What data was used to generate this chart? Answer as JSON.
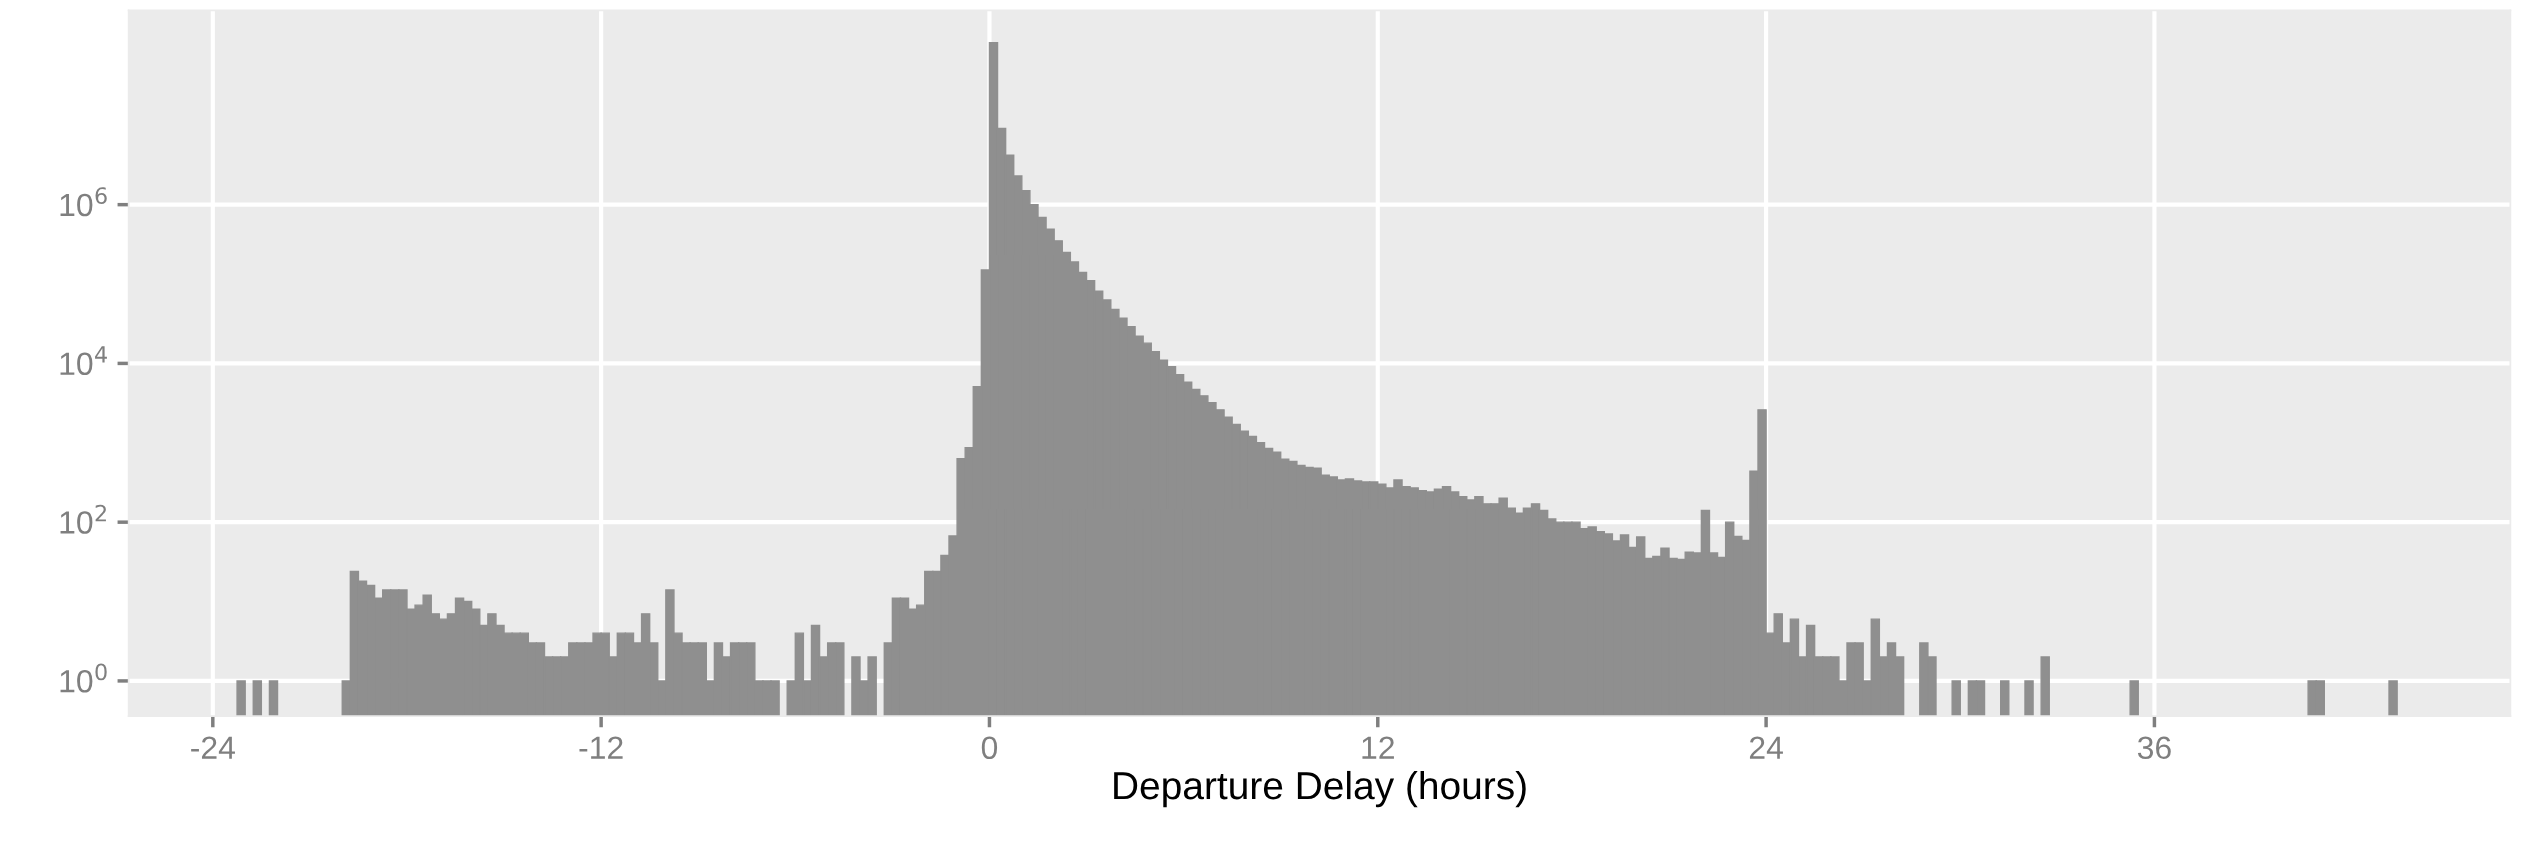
{
  "chart_data": {
    "type": "histogram",
    "xlabel": "Departure Delay (hours)",
    "color": "#8f8f8f",
    "bins": [
      -23.25,
      -23,
      -22.75,
      -22.5,
      -22.25,
      -22,
      -21.75,
      -21.5,
      -21.25,
      -21,
      -20.75,
      -20.5,
      -20.25,
      -20,
      -19.75,
      -19.5,
      -19.25,
      -19,
      -18.75,
      -18.5,
      -18.25,
      -18,
      -17.75,
      -17.5,
      -17.25,
      -17,
      -16.75,
      -16.5,
      -16.25,
      -16,
      -15.75,
      -15.5,
      -15.25,
      -15,
      -14.75,
      -14.5,
      -14.25,
      -14,
      -13.75,
      -13.5,
      -13.25,
      -13,
      -12.75,
      -12.5,
      -12.25,
      -12,
      -11.75,
      -11.5,
      -11.25,
      -11,
      -10.75,
      -10.5,
      -10.25,
      -10,
      -9.75,
      -9.5,
      -9.25,
      -9,
      -8.75,
      -8.5,
      -8.25,
      -8,
      -7.75,
      -7.5,
      -7.25,
      -7,
      -6.75,
      -6.5,
      -6.25,
      -6,
      -5.75,
      -5.5,
      -5.25,
      -5,
      -4.75,
      -4.5,
      -4.25,
      -4,
      -3.75,
      -3.5,
      -3.25,
      -3,
      -2.75,
      -2.5,
      -2.25,
      -2,
      -1.75,
      -1.5,
      -1.25,
      -1,
      -0.75,
      -0.5,
      -0.25,
      0,
      0.25,
      0.5,
      0.75,
      1,
      1.25,
      1.5,
      1.75,
      2,
      2.25,
      2.5,
      2.75,
      3,
      3.25,
      3.5,
      3.75,
      4,
      4.25,
      4.5,
      4.75,
      5,
      5.25,
      5.5,
      5.75,
      6,
      6.25,
      6.5,
      6.75,
      7,
      7.25,
      7.5,
      7.75,
      8,
      8.25,
      8.5,
      8.75,
      9,
      9.25,
      9.5,
      9.75,
      10,
      10.25,
      10.5,
      10.75,
      11,
      11.25,
      11.5,
      11.75,
      12,
      12.25,
      12.5,
      12.75,
      13,
      13.25,
      13.5,
      13.75,
      14,
      14.25,
      14.5,
      14.75,
      15,
      15.25,
      15.5,
      15.75,
      16,
      16.25,
      16.5,
      16.75,
      17,
      17.25,
      17.5,
      17.75,
      18,
      18.25,
      18.5,
      18.75,
      19,
      19.25,
      19.5,
      19.75,
      20,
      20.25,
      20.5,
      20.75,
      21,
      21.25,
      21.5,
      21.75,
      22,
      22.25,
      22.5,
      22.75,
      23,
      23.25,
      23.5,
      23.75,
      24,
      24.25,
      24.5,
      24.75,
      25,
      25.25,
      25.5,
      25.75,
      26,
      26.25,
      26.5,
      26.75,
      27,
      27.25,
      27.5,
      27.75,
      28,
      28.25,
      28.5,
      28.75,
      29,
      29.25,
      29.5,
      29.75,
      30,
      30.25,
      30.5,
      30.75,
      31,
      31.25,
      31.5,
      31.75,
      32,
      32.25,
      32.5,
      32.75,
      33,
      33.25,
      33.5,
      33.75,
      34,
      34.25,
      34.5,
      34.75,
      35,
      35.25,
      35.5,
      35.75,
      36,
      36.25,
      36.5,
      36.75,
      37,
      37.25,
      37.5,
      37.75,
      38,
      38.25,
      38.5,
      38.75,
      39,
      39.25,
      39.5,
      39.75,
      40,
      40.25,
      40.5,
      40.75,
      41,
      41.25,
      41.5,
      41.75,
      42,
      42.25,
      42.5,
      42.75,
      43,
      43.25,
      43.5
    ],
    "values": [
      1,
      null,
      1,
      null,
      1,
      null,
      null,
      null,
      null,
      null,
      null,
      null,
      null,
      1,
      24,
      18,
      16,
      11,
      14,
      14,
      14,
      8,
      9,
      12,
      7,
      6,
      7,
      11,
      10,
      8,
      5,
      7,
      5,
      4,
      4,
      4,
      3,
      3,
      2,
      2,
      2,
      3,
      3,
      3,
      4,
      4,
      2,
      4,
      4,
      3,
      7,
      3,
      1,
      14,
      4,
      3,
      3,
      3,
      1,
      3,
      2,
      3,
      3,
      3,
      1,
      1,
      1,
      null,
      1,
      4,
      1,
      5,
      2,
      3,
      3,
      null,
      2,
      1,
      2,
      null,
      3,
      11,
      11,
      8,
      9,
      24,
      24,
      38,
      67,
      630,
      870,
      5100,
      150000,
      110000000,
      9100000,
      4200000,
      2300000,
      1500000,
      1000000,
      690000,
      490000,
      350000,
      250000,
      190000,
      140000,
      110000,
      81000,
      63000,
      48000,
      37000,
      29000,
      22000,
      18000,
      14000,
      11000,
      9100,
      7200,
      5800,
      4700,
      3900,
      3200,
      2600,
      2100,
      1700,
      1400,
      1200,
      1000,
      850,
      760,
      620,
      580,
      520,
      490,
      480,
      390,
      370,
      340,
      350,
      330,
      320,
      320,
      300,
      270,
      340,
      280,
      270,
      250,
      240,
      260,
      280,
      240,
      210,
      190,
      210,
      170,
      170,
      200,
      150,
      130,
      150,
      170,
      140,
      110,
      100,
      100,
      100,
      83,
      87,
      76,
      71,
      58,
      69,
      48,
      65,
      35,
      37,
      47,
      35,
      34,
      42,
      41,
      140,
      41,
      36,
      100,
      66,
      59,
      440,
      2600,
      4,
      7,
      3,
      6,
      2,
      5,
      2,
      2,
      2,
      1,
      3,
      3,
      1,
      6,
      2,
      3,
      2,
      null,
      null,
      3,
      2,
      null,
      null,
      1,
      null,
      1,
      1,
      null,
      null,
      1,
      null,
      null,
      1,
      null,
      2,
      null,
      null,
      null,
      null,
      null,
      null,
      null,
      null,
      null,
      null,
      1,
      null,
      null,
      null,
      null,
      null,
      null,
      null,
      null,
      null,
      null,
      null,
      null,
      null,
      null,
      null,
      null,
      null,
      null,
      null,
      null,
      null,
      1,
      1,
      null,
      null,
      null,
      null,
      null,
      null,
      null,
      null,
      1
    ],
    "xlim": [
      -26.6,
      47.0
    ],
    "xticks": [
      -24,
      -12,
      0,
      12,
      24,
      36
    ],
    "log": "y",
    "ylim": [
      0.36,
      280000000
    ],
    "yticks": [
      {
        "value": 1,
        "label": "10$^{0}$"
      },
      {
        "value": 100,
        "label": "10$^{2}$"
      },
      {
        "value": 10000,
        "label": "10$^{4}$"
      },
      {
        "value": 1000000,
        "label": "10$^{6}$"
      }
    ],
    "grid": true
  }
}
